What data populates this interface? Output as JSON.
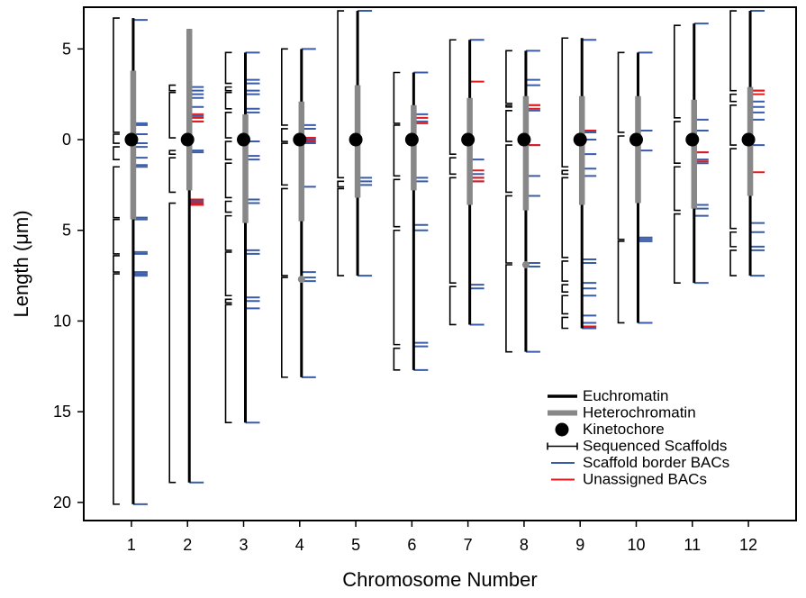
{
  "chart_data": {
    "type": "chromosome-ideogram",
    "xlabel": "Chromosome Number",
    "ylabel": "Length (μm)",
    "x_ticks": [
      "1",
      "2",
      "3",
      "4",
      "5",
      "6",
      "7",
      "8",
      "9",
      "10",
      "11",
      "12"
    ],
    "y_ticks": [
      {
        "value": -5,
        "label": "5"
      },
      {
        "value": 0,
        "label": "0"
      },
      {
        "value": 5,
        "label": "5"
      },
      {
        "value": 10,
        "label": "10"
      },
      {
        "value": 15,
        "label": "15"
      },
      {
        "value": 20,
        "label": "20"
      }
    ],
    "ylim": [
      -7.3,
      21
    ],
    "xlim": [
      0.15,
      12.85
    ],
    "legend_position": "lower-right",
    "legend": [
      {
        "label": "Euchromatin",
        "symbol": "thick-line",
        "color": "#000000"
      },
      {
        "label": "Heterochromatin",
        "symbol": "thick-line",
        "color": "#888888"
      },
      {
        "label": "Kinetochore",
        "symbol": "dot",
        "color": "#000000"
      },
      {
        "label": "Sequenced Scaffolds",
        "symbol": "bracket",
        "color": "#000000"
      },
      {
        "label": "Scaffold border BACs",
        "symbol": "tick",
        "color": "#3a5ca8"
      },
      {
        "label": "Unassigned BACs",
        "symbol": "tick",
        "color": "#e31a1c"
      }
    ],
    "colors": {
      "euchromatin": "#000000",
      "heterochromatin": "#888888",
      "kinetochore": "#000000",
      "scaffold": "#000000",
      "border_bac": "#3a5ca8",
      "unassigned_bac": "#e31a1c"
    },
    "chromosomes": [
      {
        "number": 1,
        "top": -6.7,
        "bottom": 20.1,
        "het": [
          [
            -3.8,
            4.4
          ]
        ],
        "scaffolds": [
          [
            -6.7,
            -0.4
          ],
          [
            -0.3,
            0.2
          ],
          [
            0.4,
            1.1
          ],
          [
            1.5,
            4.3
          ],
          [
            4.4,
            6.3
          ],
          [
            6.4,
            7.3
          ],
          [
            7.4,
            20.1
          ]
        ],
        "bacs": [
          -6.6,
          -0.9,
          -0.8,
          -0.3,
          0.2,
          0.4,
          1.0,
          1.4,
          1.5,
          4.3,
          4.4,
          6.2,
          6.3,
          7.3,
          7.4,
          7.5,
          20.1
        ],
        "red": []
      },
      {
        "number": 2,
        "top": -6.1,
        "bottom": 18.9,
        "het": [
          [
            -6.1,
            2.8
          ]
        ],
        "scaffolds": [
          [
            -3.0,
            -2.7
          ],
          [
            -2.6,
            -0.1
          ],
          [
            0.6,
            0.8
          ],
          [
            1.0,
            2.9
          ],
          [
            3.5,
            18.9
          ]
        ],
        "bacs": [
          -2.9,
          -2.7,
          -2.5,
          -2.3,
          -1.8,
          -1.3,
          -1.0,
          0.6,
          0.7,
          3.4,
          3.6,
          18.9
        ],
        "red": [
          -1.4,
          -1.2,
          -1.0,
          3.3,
          3.5,
          3.6
        ]
      },
      {
        "number": 3,
        "top": -4.8,
        "bottom": 15.6,
        "het": [
          [
            -1.4,
            4.6
          ]
        ],
        "scaffolds": [
          [
            -4.8,
            -3.1
          ],
          [
            -2.9,
            -2.7
          ],
          [
            -2.6,
            -1.7
          ],
          [
            -1.5,
            -0.1
          ],
          [
            0.1,
            1.1
          ],
          [
            1.3,
            3.2
          ],
          [
            3.4,
            4.0
          ],
          [
            4.2,
            6.1
          ],
          [
            6.2,
            8.6
          ],
          [
            8.8,
            9.0
          ],
          [
            9.1,
            15.6
          ]
        ],
        "bacs": [
          -4.8,
          -3.3,
          -3.1,
          -2.7,
          -2.5,
          -1.7,
          -1.5,
          0.1,
          0.9,
          1.1,
          3.3,
          3.5,
          6.1,
          6.3,
          8.7,
          8.9,
          9.3,
          15.6
        ],
        "red": []
      },
      {
        "number": 4,
        "top": -5.0,
        "bottom": 13.1,
        "het": [
          [
            -2.1,
            4.5
          ]
        ],
        "scaffolds": [
          [
            -5.0,
            -0.8
          ],
          [
            -0.6,
            0.1
          ],
          [
            0.2,
            2.5
          ],
          [
            2.7,
            7.5
          ],
          [
            7.6,
            13.1
          ]
        ],
        "bacs": [
          -5.0,
          -0.8,
          -0.6,
          0.0,
          0.2,
          2.6,
          7.3,
          7.6,
          7.8,
          13.1
        ],
        "red": [
          -0.1,
          0.1
        ],
        "gray_dot": [
          7.7
        ]
      },
      {
        "number": 5,
        "top": -7.1,
        "bottom": 7.5,
        "het": [
          [
            -3.0,
            3.2
          ]
        ],
        "scaffolds": [
          [
            -7.1,
            2.1
          ],
          [
            2.3,
            2.6
          ],
          [
            2.7,
            7.5
          ]
        ],
        "bacs": [
          -7.1,
          2.1,
          2.3,
          2.5,
          7.5
        ],
        "red": []
      },
      {
        "number": 6,
        "top": -3.7,
        "bottom": 12.7,
        "het": [
          [
            -1.9,
            2.8
          ]
        ],
        "scaffolds": [
          [
            -3.7,
            -0.9
          ],
          [
            -0.8,
            2.0
          ],
          [
            2.2,
            4.8
          ],
          [
            5.0,
            11.3
          ],
          [
            11.5,
            12.7
          ]
        ],
        "bacs": [
          -3.7,
          -1.4,
          -1.0,
          2.1,
          2.3,
          4.7,
          5.0,
          11.2,
          11.4,
          12.7
        ],
        "red": [
          -1.2,
          -0.9
        ]
      },
      {
        "number": 7,
        "top": -5.5,
        "bottom": 10.2,
        "het": [
          [
            -2.3,
            3.6
          ]
        ],
        "scaffolds": [
          [
            -5.5,
            0.8
          ],
          [
            1.0,
            1.9
          ],
          [
            2.1,
            7.9
          ],
          [
            8.1,
            10.2
          ]
        ],
        "bacs": [
          -5.5,
          1.1,
          1.9,
          2.1,
          2.3,
          8.0,
          8.2,
          10.2
        ],
        "red": [
          -3.2,
          1.7,
          2.1,
          2.3
        ]
      },
      {
        "number": 8,
        "top": -4.9,
        "bottom": 11.7,
        "het": [
          [
            -2.4,
            3.9
          ]
        ],
        "scaffolds": [
          [
            -4.9,
            -2.0
          ],
          [
            -1.9,
            -1.8
          ],
          [
            -1.6,
            0.1
          ],
          [
            0.3,
            2.9
          ],
          [
            3.1,
            6.8
          ],
          [
            6.9,
            11.7
          ]
        ],
        "bacs": [
          -4.9,
          -3.3,
          -3.0,
          -1.9,
          -1.6,
          0.3,
          2.0,
          3.1,
          6.8,
          7.0,
          11.7
        ],
        "red": [
          -1.9,
          -1.7,
          0.3
        ],
        "gray_dot": [
          6.9
        ]
      },
      {
        "number": 9,
        "top": -5.6,
        "bottom": 10.4,
        "het": [
          [
            -2.4,
            3.6
          ]
        ],
        "scaffolds": [
          [
            -5.6,
            1.5
          ],
          [
            1.7,
            1.9
          ],
          [
            2.1,
            6.5
          ],
          [
            6.7,
            7.8
          ],
          [
            8.0,
            8.4
          ],
          [
            8.6,
            9.6
          ],
          [
            9.8,
            10.4
          ]
        ],
        "bacs": [
          -5.5,
          -0.4,
          0.0,
          0.8,
          1.6,
          2.0,
          6.6,
          6.8,
          7.9,
          8.2,
          8.6,
          9.7,
          10.1,
          10.4
        ],
        "red": [
          -0.5,
          10.3
        ]
      },
      {
        "number": 10,
        "top": -4.8,
        "bottom": 10.1,
        "het": [
          [
            -2.4,
            3.5
          ]
        ],
        "scaffolds": [
          [
            -4.8,
            -0.4
          ],
          [
            -0.2,
            5.5
          ],
          [
            5.6,
            10.1
          ]
        ],
        "bacs": [
          -4.8,
          -0.5,
          0.6,
          5.4,
          5.5,
          5.6,
          10.1
        ],
        "red": []
      },
      {
        "number": 11,
        "top": -6.4,
        "bottom": 7.9,
        "het": [
          [
            -2.2,
            3.8
          ]
        ],
        "scaffolds": [
          [
            -6.3,
            -1.2
          ],
          [
            -1.0,
            1.3
          ],
          [
            1.5,
            3.9
          ],
          [
            4.1,
            7.9
          ]
        ],
        "bacs": [
          -6.4,
          -1.1,
          -0.5,
          0.7,
          1.1,
          1.3,
          3.6,
          3.8,
          4.2,
          7.9
        ],
        "red": [
          0.7,
          1.2
        ]
      },
      {
        "number": 12,
        "top": -7.1,
        "bottom": 7.5,
        "het": [
          [
            -2.9,
            3.1
          ]
        ],
        "scaffolds": [
          [
            -7.1,
            -2.7
          ],
          [
            -2.5,
            -2.1
          ],
          [
            -1.9,
            0.3
          ],
          [
            0.5,
            4.9
          ],
          [
            5.1,
            5.9
          ],
          [
            6.1,
            7.5
          ]
        ],
        "bacs": [
          -7.1,
          -2.7,
          -2.1,
          -1.8,
          -1.5,
          -1.1,
          0.3,
          4.6,
          5.1,
          5.9,
          6.1,
          7.5
        ],
        "red": [
          -2.7,
          -2.5,
          1.8
        ]
      }
    ]
  }
}
